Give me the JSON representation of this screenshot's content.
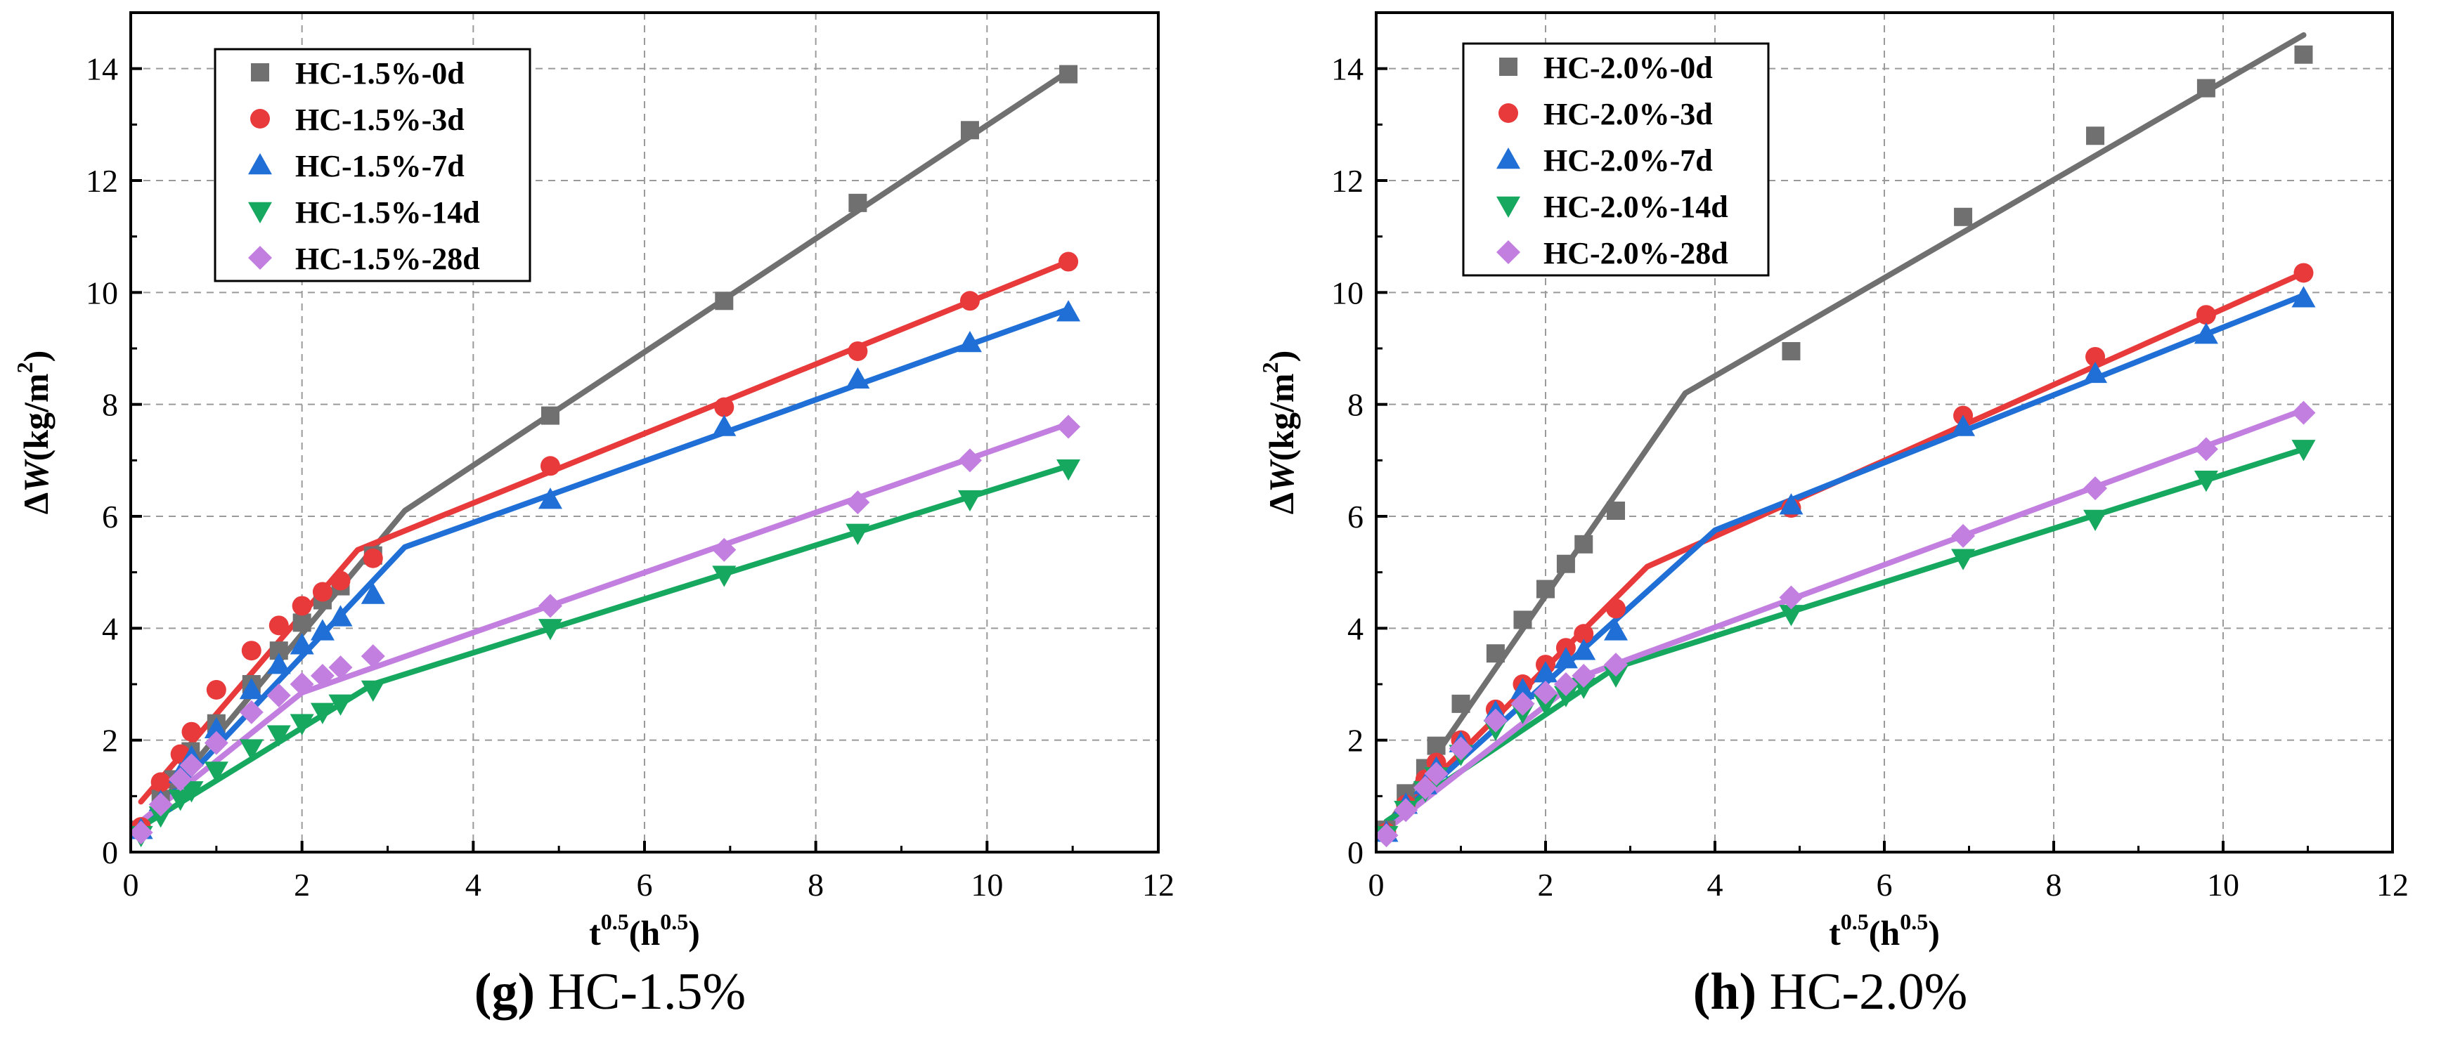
{
  "figure": {
    "captions": {
      "g": {
        "letter": "(g)",
        "name": "HC-1.5%"
      },
      "h": {
        "letter": "(h)",
        "name": "HC-2.0%"
      }
    }
  },
  "chart_data": [
    {
      "type": "scatter",
      "id": "g",
      "title": "",
      "caption": "(g) HC-1.5%",
      "xlabel": "t0.5(h0.5)",
      "xlabel_parts": {
        "base": "t",
        "sup1": "0.5",
        "mid": "(h",
        "sup2": "0.5",
        "end": ")"
      },
      "ylabel": "ΔW(kg/m2)",
      "ylabel_parts": {
        "delta": "Δ",
        "w": "W",
        "mid": "(kg/m",
        "sup": "2",
        "end": ")"
      },
      "xlim": [
        0,
        12
      ],
      "ylim": [
        0,
        15
      ],
      "xticks": [
        0,
        2,
        4,
        6,
        8,
        10,
        12
      ],
      "yticks": [
        0,
        2,
        4,
        6,
        8,
        10,
        12,
        14
      ],
      "grid": true,
      "legend_position": "top-left",
      "series": [
        {
          "name": "HC-1.5%-0d",
          "color": "#707070",
          "marker": "square",
          "points": [
            [
              0.12,
              0.4
            ],
            [
              0.35,
              0.95
            ],
            [
              0.5,
              1.3
            ],
            [
              0.7,
              1.8
            ],
            [
              1.0,
              2.3
            ],
            [
              1.41,
              3.0
            ],
            [
              1.73,
              3.6
            ],
            [
              2.0,
              4.1
            ],
            [
              2.24,
              4.5
            ],
            [
              2.45,
              4.75
            ],
            [
              2.83,
              5.3
            ],
            [
              4.9,
              7.8
            ],
            [
              6.93,
              9.85
            ],
            [
              8.49,
              11.6
            ],
            [
              9.8,
              12.9
            ],
            [
              10.95,
              13.9
            ]
          ],
          "fit": [
            [
              0.12,
              0.45
            ],
            [
              3.2,
              6.1
            ],
            [
              10.95,
              13.95
            ]
          ]
        },
        {
          "name": "HC-1.5%-3d",
          "color": "#e8393b",
          "marker": "circle",
          "points": [
            [
              0.12,
              0.45
            ],
            [
              0.35,
              1.25
            ],
            [
              0.58,
              1.75
            ],
            [
              0.71,
              2.15
            ],
            [
              1.0,
              2.9
            ],
            [
              1.41,
              3.6
            ],
            [
              1.73,
              4.05
            ],
            [
              2.0,
              4.4
            ],
            [
              2.24,
              4.65
            ],
            [
              2.45,
              4.85
            ],
            [
              2.83,
              5.25
            ],
            [
              4.9,
              6.9
            ],
            [
              6.93,
              7.95
            ],
            [
              8.49,
              8.95
            ],
            [
              9.8,
              9.85
            ],
            [
              10.95,
              10.55
            ]
          ],
          "fit": [
            [
              0.12,
              0.9
            ],
            [
              2.65,
              5.4
            ],
            [
              10.95,
              10.55
            ]
          ]
        },
        {
          "name": "HC-1.5%-7d",
          "color": "#1f6fd6",
          "marker": "triangle-up",
          "points": [
            [
              0.12,
              0.4
            ],
            [
              0.35,
              0.9
            ],
            [
              0.58,
              1.4
            ],
            [
              0.71,
              1.7
            ],
            [
              1.0,
              2.2
            ],
            [
              1.41,
              2.9
            ],
            [
              1.73,
              3.35
            ],
            [
              2.0,
              3.7
            ],
            [
              2.24,
              3.95
            ],
            [
              2.45,
              4.2
            ],
            [
              2.83,
              4.6
            ],
            [
              4.9,
              6.3
            ],
            [
              6.93,
              7.6
            ],
            [
              8.49,
              8.45
            ],
            [
              9.8,
              9.1
            ],
            [
              10.95,
              9.65
            ]
          ],
          "fit": [
            [
              0.12,
              0.45
            ],
            [
              3.2,
              5.45
            ],
            [
              10.95,
              9.7
            ]
          ]
        },
        {
          "name": "HC-1.5%-14d",
          "color": "#17a860",
          "marker": "triangle-down",
          "points": [
            [
              0.12,
              0.3
            ],
            [
              0.35,
              0.65
            ],
            [
              0.58,
              0.95
            ],
            [
              0.71,
              1.1
            ],
            [
              1.0,
              1.45
            ],
            [
              1.41,
              1.85
            ],
            [
              1.73,
              2.1
            ],
            [
              2.0,
              2.3
            ],
            [
              2.24,
              2.5
            ],
            [
              2.45,
              2.65
            ],
            [
              2.83,
              2.9
            ],
            [
              4.9,
              4.0
            ],
            [
              6.93,
              4.95
            ],
            [
              8.49,
              5.7
            ],
            [
              9.8,
              6.3
            ],
            [
              10.95,
              6.85
            ]
          ],
          "fit": [
            [
              0.12,
              0.45
            ],
            [
              2.83,
              3.0
            ],
            [
              10.95,
              6.9
            ]
          ]
        },
        {
          "name": "HC-1.5%-28d",
          "color": "#c27fe0",
          "marker": "diamond",
          "points": [
            [
              0.12,
              0.35
            ],
            [
              0.35,
              0.85
            ],
            [
              0.58,
              1.3
            ],
            [
              0.71,
              1.55
            ],
            [
              1.0,
              1.95
            ],
            [
              1.41,
              2.5
            ],
            [
              1.73,
              2.8
            ],
            [
              2.0,
              3.0
            ],
            [
              2.24,
              3.15
            ],
            [
              2.45,
              3.3
            ],
            [
              2.83,
              3.5
            ],
            [
              4.9,
              4.4
            ],
            [
              6.93,
              5.4
            ],
            [
              8.49,
              6.25
            ],
            [
              9.8,
              7.0
            ],
            [
              10.95,
              7.6
            ]
          ],
          "fit": [
            [
              0.12,
              0.55
            ],
            [
              2.0,
              2.85
            ],
            [
              10.95,
              7.65
            ]
          ]
        }
      ]
    },
    {
      "type": "scatter",
      "id": "h",
      "title": "",
      "caption": "(h) HC-2.0%",
      "xlabel": "t0.5(h0.5)",
      "xlabel_parts": {
        "base": "t",
        "sup1": "0.5",
        "mid": "(h",
        "sup2": "0.5",
        "end": ")"
      },
      "ylabel": "ΔW(kg/m2)",
      "ylabel_parts": {
        "delta": "Δ",
        "w": "W",
        "mid": "(kg/m",
        "sup": "2",
        "end": ")"
      },
      "xlim": [
        0,
        12
      ],
      "ylim": [
        0,
        15
      ],
      "xticks": [
        0,
        2,
        4,
        6,
        8,
        10,
        12
      ],
      "yticks": [
        0,
        2,
        4,
        6,
        8,
        10,
        12,
        14
      ],
      "grid": true,
      "legend_position": "top-left",
      "series": [
        {
          "name": "HC-2.0%-0d",
          "color": "#707070",
          "marker": "square",
          "points": [
            [
              0.12,
              0.4
            ],
            [
              0.35,
              1.05
            ],
            [
              0.58,
              1.5
            ],
            [
              0.71,
              1.9
            ],
            [
              1.0,
              2.65
            ],
            [
              1.41,
              3.55
            ],
            [
              1.73,
              4.15
            ],
            [
              2.0,
              4.7
            ],
            [
              2.24,
              5.15
            ],
            [
              2.45,
              5.5
            ],
            [
              2.83,
              6.1
            ],
            [
              4.9,
              8.95
            ],
            [
              6.93,
              11.35
            ],
            [
              8.49,
              12.8
            ],
            [
              9.8,
              13.65
            ],
            [
              10.95,
              14.25
            ]
          ],
          "fit": [
            [
              0.12,
              0.45
            ],
            [
              3.65,
              8.2
            ],
            [
              10.95,
              14.6
            ]
          ]
        },
        {
          "name": "HC-2.0%-3d",
          "color": "#e8393b",
          "marker": "circle",
          "points": [
            [
              0.12,
              0.35
            ],
            [
              0.35,
              0.85
            ],
            [
              0.58,
              1.3
            ],
            [
              0.71,
              1.6
            ],
            [
              1.0,
              2.0
            ],
            [
              1.41,
              2.55
            ],
            [
              1.73,
              3.0
            ],
            [
              2.0,
              3.35
            ],
            [
              2.24,
              3.65
            ],
            [
              2.45,
              3.9
            ],
            [
              2.83,
              4.35
            ],
            [
              4.9,
              6.15
            ],
            [
              6.93,
              7.8
            ],
            [
              8.49,
              8.85
            ],
            [
              9.8,
              9.6
            ],
            [
              10.95,
              10.35
            ]
          ],
          "fit": [
            [
              0.12,
              0.45
            ],
            [
              3.2,
              5.1
            ],
            [
              10.95,
              10.35
            ]
          ]
        },
        {
          "name": "HC-2.0%-7d",
          "color": "#1f6fd6",
          "marker": "triangle-up",
          "points": [
            [
              0.12,
              0.35
            ],
            [
              0.35,
              0.85
            ],
            [
              0.58,
              1.2
            ],
            [
              0.71,
              1.5
            ],
            [
              1.0,
              1.95
            ],
            [
              1.41,
              2.5
            ],
            [
              1.73,
              2.9
            ],
            [
              2.0,
              3.2
            ],
            [
              2.24,
              3.45
            ],
            [
              2.45,
              3.6
            ],
            [
              2.83,
              3.95
            ],
            [
              4.9,
              6.2
            ],
            [
              6.93,
              7.6
            ],
            [
              8.49,
              8.55
            ],
            [
              9.8,
              9.25
            ],
            [
              10.95,
              9.9
            ]
          ],
          "fit": [
            [
              0.12,
              0.45
            ],
            [
              4.0,
              5.75
            ],
            [
              10.95,
              9.95
            ]
          ]
        },
        {
          "name": "HC-2.0%-14d",
          "color": "#17a860",
          "marker": "triangle-down",
          "points": [
            [
              0.12,
              0.3
            ],
            [
              0.35,
              0.75
            ],
            [
              0.58,
              1.1
            ],
            [
              0.71,
              1.35
            ],
            [
              1.0,
              1.75
            ],
            [
              1.41,
              2.2
            ],
            [
              1.73,
              2.5
            ],
            [
              2.0,
              2.65
            ],
            [
              2.24,
              2.8
            ],
            [
              2.45,
              2.95
            ],
            [
              2.83,
              3.15
            ],
            [
              4.9,
              4.25
            ],
            [
              6.93,
              5.25
            ],
            [
              8.49,
              5.95
            ],
            [
              9.8,
              6.65
            ],
            [
              10.95,
              7.2
            ]
          ],
          "fit": [
            [
              0.12,
              0.55
            ],
            [
              2.83,
              3.3
            ],
            [
              10.95,
              7.2
            ]
          ]
        },
        {
          "name": "HC-2.0%-28d",
          "color": "#c27fe0",
          "marker": "diamond",
          "points": [
            [
              0.12,
              0.3
            ],
            [
              0.35,
              0.75
            ],
            [
              0.58,
              1.15
            ],
            [
              0.71,
              1.4
            ],
            [
              1.0,
              1.85
            ],
            [
              1.41,
              2.35
            ],
            [
              1.73,
              2.65
            ],
            [
              2.0,
              2.85
            ],
            [
              2.24,
              3.0
            ],
            [
              2.45,
              3.15
            ],
            [
              2.83,
              3.35
            ],
            [
              4.9,
              4.55
            ],
            [
              6.93,
              5.65
            ],
            [
              8.49,
              6.5
            ],
            [
              9.8,
              7.2
            ],
            [
              10.95,
              7.85
            ]
          ],
          "fit": [
            [
              0.12,
              0.4
            ],
            [
              2.45,
              3.15
            ],
            [
              10.95,
              7.9
            ]
          ]
        }
      ]
    }
  ]
}
